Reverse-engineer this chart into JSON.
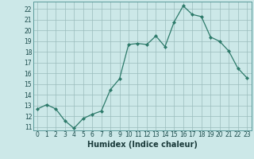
{
  "x": [
    0,
    1,
    2,
    3,
    4,
    5,
    6,
    7,
    8,
    9,
    10,
    11,
    12,
    13,
    14,
    15,
    16,
    17,
    18,
    19,
    20,
    21,
    22,
    23
  ],
  "y": [
    12.7,
    13.1,
    12.7,
    11.6,
    10.9,
    11.8,
    12.2,
    12.5,
    14.5,
    15.5,
    18.7,
    18.8,
    18.7,
    19.5,
    18.5,
    20.8,
    22.3,
    21.5,
    21.3,
    19.4,
    19.0,
    18.1,
    16.5,
    15.6
  ],
  "xlabel": "Humidex (Indice chaleur)",
  "xlim": [
    -0.5,
    23.5
  ],
  "ylim": [
    10.7,
    22.7
  ],
  "yticks": [
    11,
    12,
    13,
    14,
    15,
    16,
    17,
    18,
    19,
    20,
    21,
    22
  ],
  "xticks": [
    0,
    1,
    2,
    3,
    4,
    5,
    6,
    7,
    8,
    9,
    10,
    11,
    12,
    13,
    14,
    15,
    16,
    17,
    18,
    19,
    20,
    21,
    22,
    23
  ],
  "line_color": "#2d7a6a",
  "marker_color": "#2d7a6a",
  "bg_color": "#cce8e8",
  "grid_color": "#9abcbc",
  "tick_fontsize": 5.5,
  "xlabel_fontsize": 7.0
}
